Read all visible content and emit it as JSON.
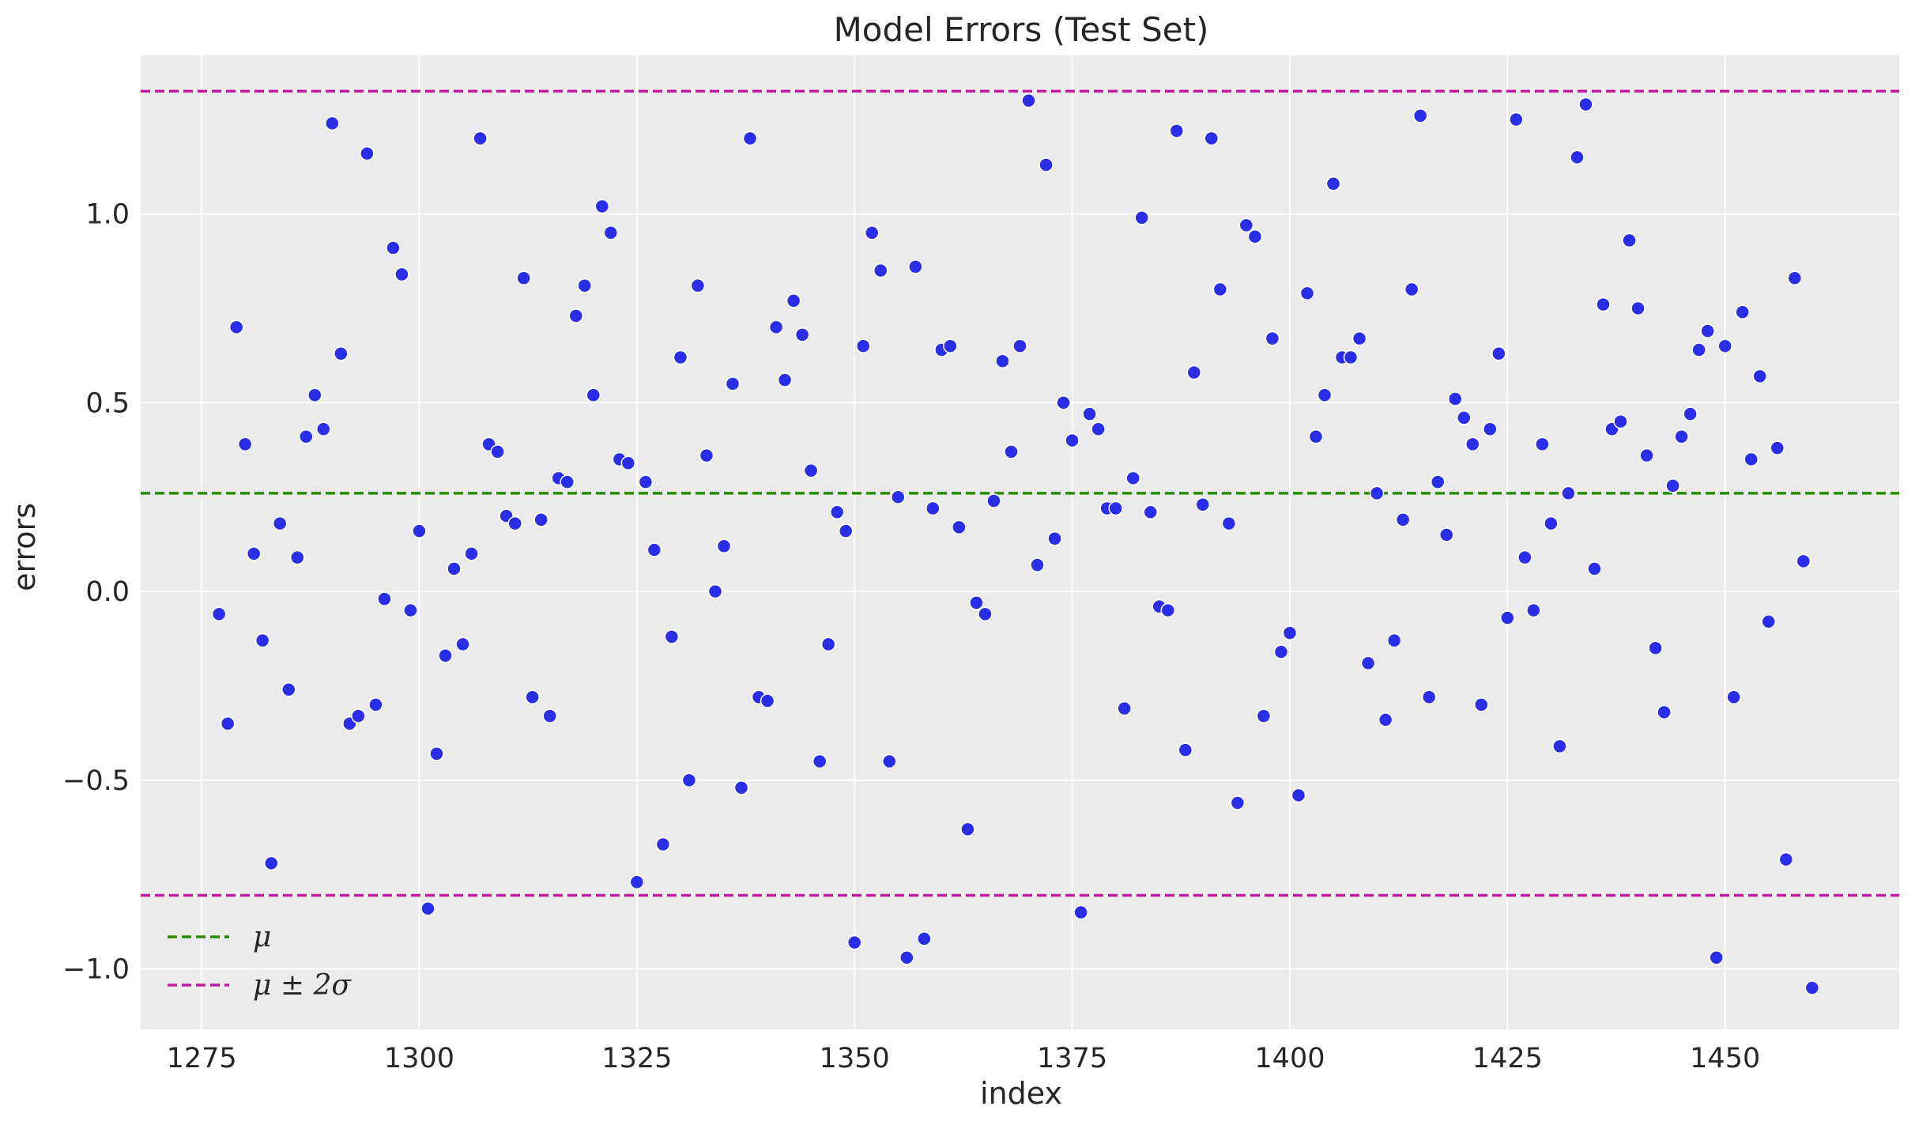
{
  "chart_data": {
    "type": "scatter",
    "title": "Model Errors (Test Set)",
    "xlabel": "index",
    "ylabel": "errors",
    "xlim": [
      1268,
      1470
    ],
    "ylim": [
      -1.16,
      1.42
    ],
    "xticks": [
      1275,
      1300,
      1325,
      1350,
      1375,
      1400,
      1425,
      1450
    ],
    "xtick_labels": [
      "1275",
      "1300",
      "1325",
      "1350",
      "1375",
      "1400",
      "1425",
      "1450"
    ],
    "yticks": [
      -1.0,
      -0.5,
      0.0,
      0.5,
      1.0
    ],
    "ytick_labels": [
      "−1.0",
      "−0.5",
      "0.0",
      "0.5",
      "1.0"
    ],
    "grid": true,
    "legend_position": "bottom-left",
    "colors": {
      "background": "#ebebeb",
      "grid": "#ffffff",
      "points": "#2a2ee6",
      "point_edge": "#ffffff",
      "mean_line": "#2e8b00",
      "band_line": "#c21a9e",
      "text": "#262626"
    },
    "reference_lines": [
      {
        "name": "mean",
        "label": "μ",
        "value": 0.26,
        "color": "#2e8b00",
        "style": "dashed"
      },
      {
        "name": "upper",
        "label": "μ ± 2σ",
        "value": 1.325,
        "color": "#c21a9e",
        "style": "dashed"
      },
      {
        "name": "lower",
        "label": "μ ± 2σ",
        "value": -0.805,
        "color": "#c21a9e",
        "style": "dashed"
      }
    ],
    "legend": [
      {
        "label": "μ",
        "color": "#2e8b00"
      },
      {
        "label": "μ ± 2σ",
        "color": "#c21a9e"
      }
    ],
    "series": [
      {
        "name": "errors",
        "x_start": 1277,
        "x_step": 1,
        "values": [
          -0.06,
          -0.35,
          0.7,
          0.39,
          0.1,
          -0.13,
          -0.72,
          0.18,
          -0.26,
          0.09,
          0.41,
          0.52,
          0.43,
          1.24,
          0.63,
          -0.35,
          -0.33,
          1.16,
          -0.3,
          -0.02,
          0.91,
          0.84,
          -0.05,
          0.16,
          -0.84,
          -0.43,
          -0.17,
          0.06,
          -0.14,
          0.1,
          1.2,
          0.39,
          0.37,
          0.2,
          0.18,
          0.83,
          -0.28,
          0.19,
          -0.33,
          0.3,
          0.29,
          0.73,
          0.81,
          0.52,
          1.02,
          0.95,
          0.35,
          0.34,
          -0.77,
          0.29,
          0.11,
          -0.67,
          -0.12,
          0.62,
          -0.5,
          0.81,
          0.36,
          0.0,
          0.12,
          0.55,
          -0.52,
          1.2,
          -0.28,
          -0.29,
          0.7,
          0.56,
          0.77,
          0.68,
          0.32,
          -0.45,
          -0.14,
          0.21,
          0.16,
          -0.93,
          0.65,
          0.95,
          0.85,
          -0.45,
          0.25,
          -0.97,
          0.86,
          -0.92,
          0.22,
          0.64,
          0.65,
          0.17,
          -0.63,
          -0.03,
          -0.06,
          0.24,
          0.61,
          0.37,
          0.65,
          1.3,
          0.07,
          1.13,
          0.14,
          0.5,
          0.4,
          -0.85,
          0.47,
          0.43,
          0.22,
          0.22,
          -0.31,
          0.3,
          0.99,
          0.21,
          -0.04,
          -0.05,
          1.22,
          -0.42,
          0.58,
          0.23,
          1.2,
          0.8,
          0.18,
          -0.56,
          0.97,
          0.94,
          -0.33,
          0.67,
          -0.16,
          -0.11,
          -0.54,
          0.79,
          0.41,
          0.52,
          1.08,
          0.62,
          0.62,
          0.67,
          -0.19,
          0.26,
          -0.34,
          -0.13,
          0.19,
          0.8,
          1.26,
          -0.28,
          0.29,
          0.15,
          0.51,
          0.46,
          0.39,
          -0.3,
          0.43,
          0.63,
          -0.07,
          1.25,
          0.09,
          -0.05,
          0.39,
          0.18,
          -0.41,
          0.26,
          1.15,
          1.29,
          0.06,
          0.76,
          0.43,
          0.45,
          0.93,
          0.75,
          0.36,
          -0.15,
          -0.32,
          0.28,
          0.41,
          0.47,
          0.64,
          0.69,
          -0.97,
          0.65,
          -0.28,
          0.74,
          0.35,
          0.57,
          -0.08,
          0.38,
          -0.71,
          0.83,
          0.08,
          -1.05
        ]
      }
    ]
  }
}
